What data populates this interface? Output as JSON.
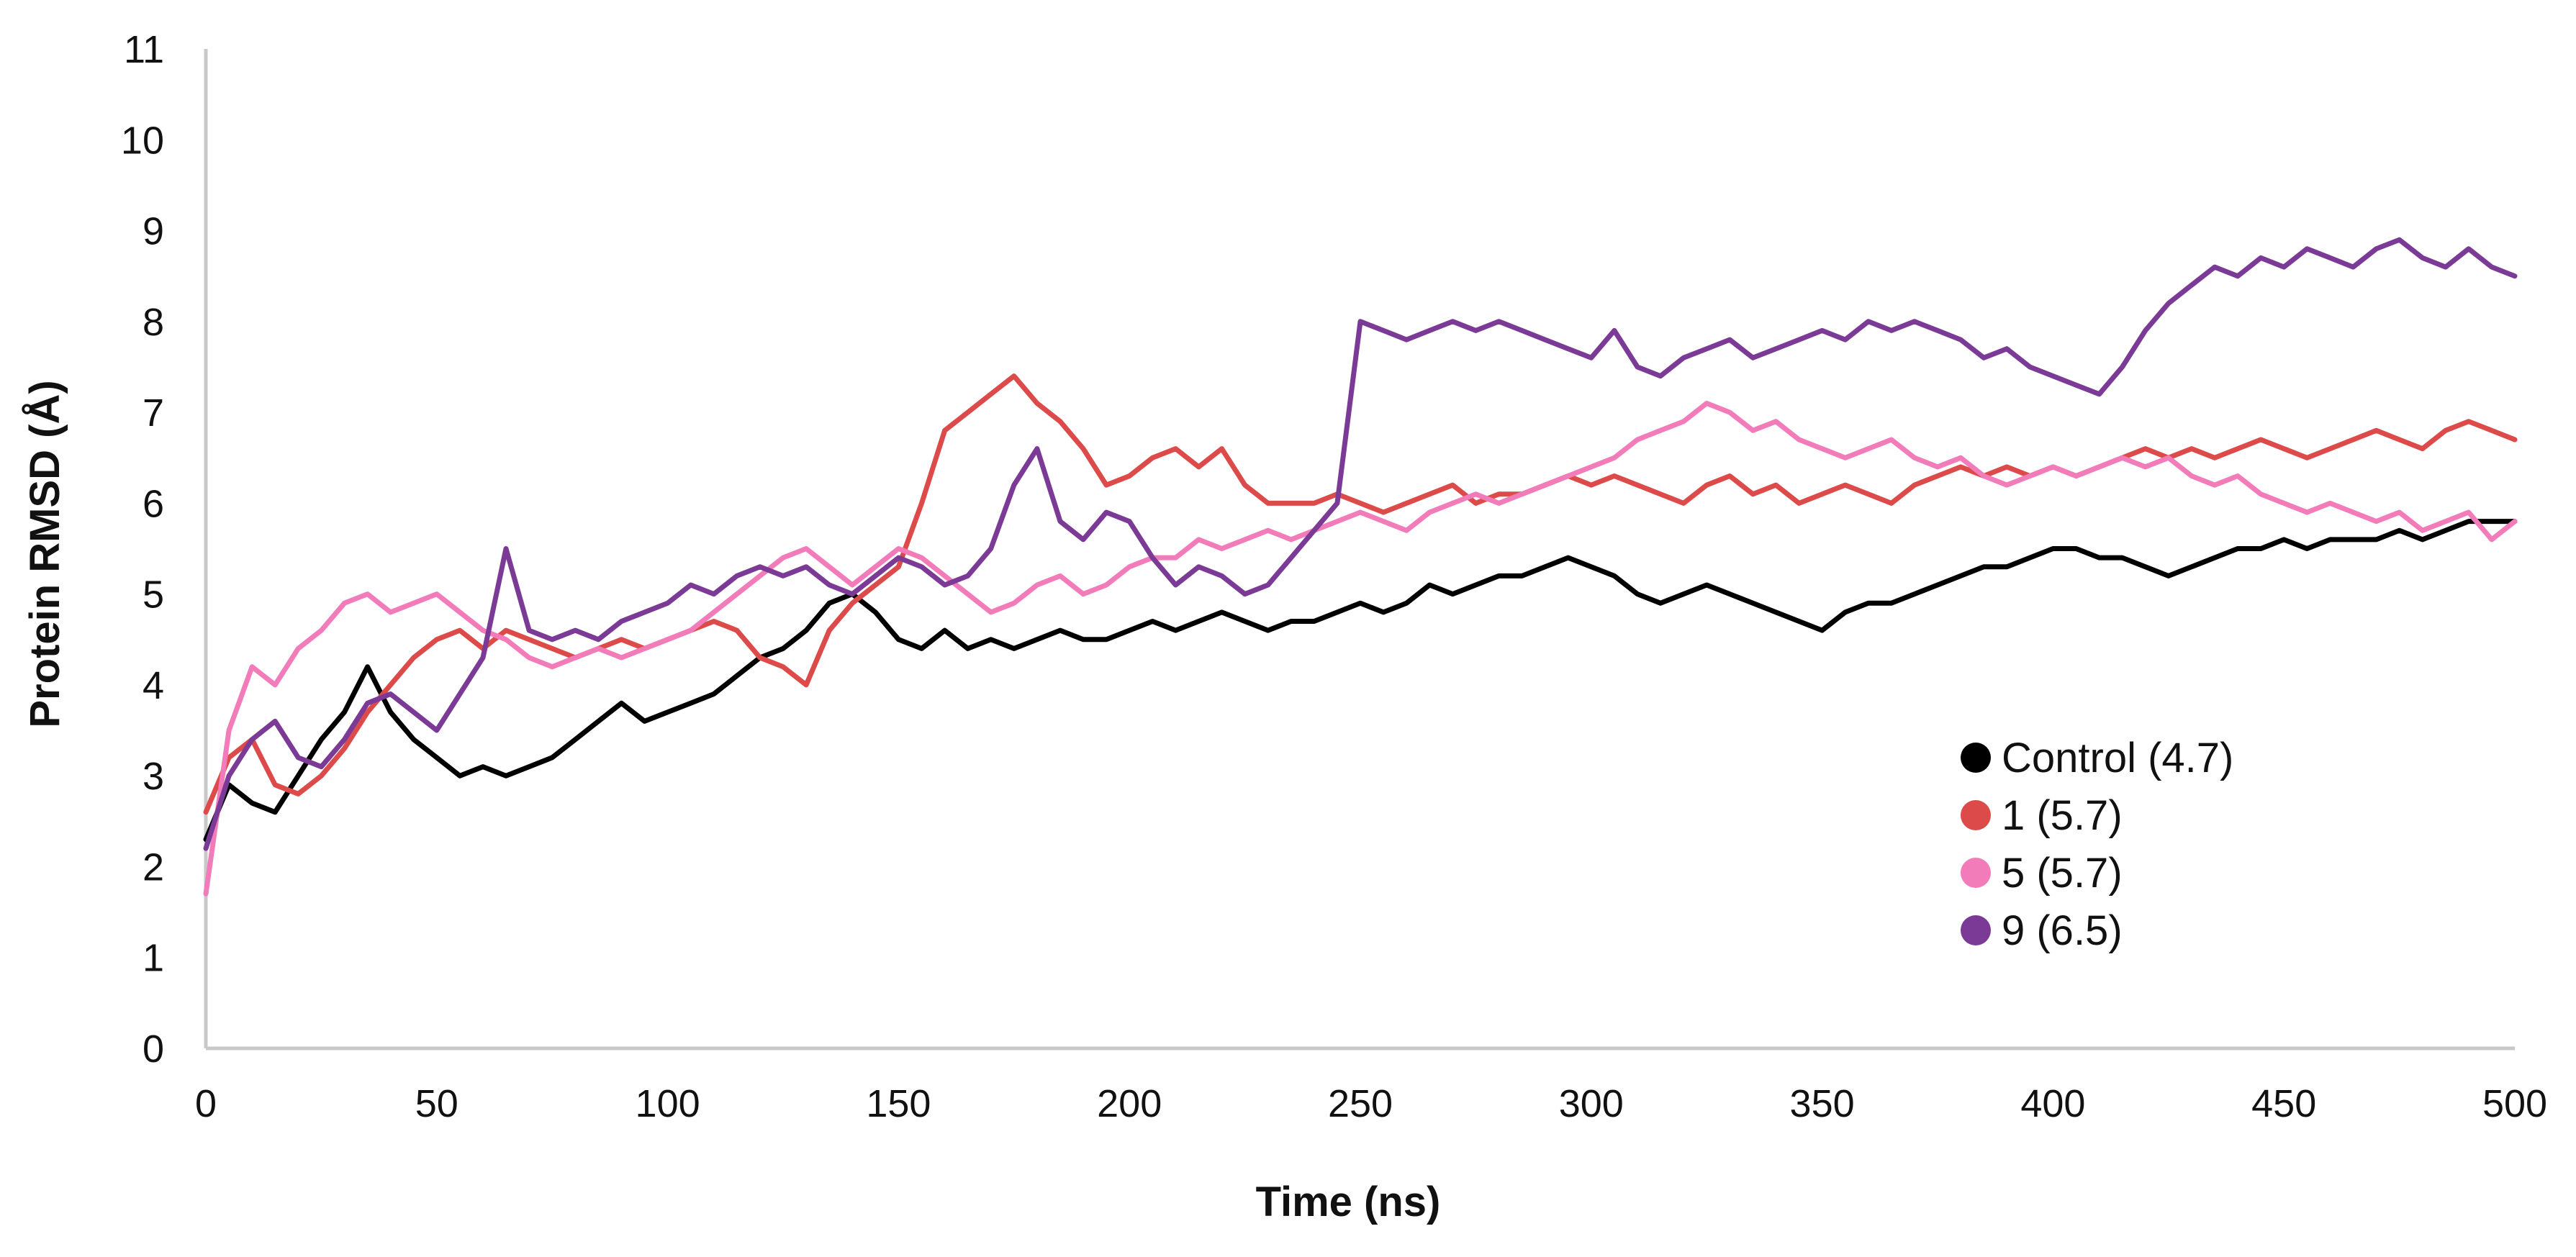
{
  "chart_data": {
    "type": "line",
    "title": "",
    "xlabel": "Time (ns)",
    "ylabel": "Protein RMSD (Å)",
    "xlim": [
      0,
      500
    ],
    "ylim": [
      0,
      11
    ],
    "xticks": [
      0,
      50,
      100,
      150,
      200,
      250,
      300,
      350,
      400,
      450,
      500
    ],
    "yticks": [
      0,
      1,
      2,
      3,
      4,
      5,
      6,
      7,
      8,
      9,
      10,
      11
    ],
    "grid": false,
    "legend_position": "right",
    "series": [
      {
        "name": "Control (4.7)",
        "color": "#000000",
        "x": [
          0,
          5,
          10,
          15,
          20,
          25,
          30,
          35,
          40,
          45,
          50,
          55,
          60,
          65,
          70,
          75,
          80,
          85,
          90,
          95,
          100,
          105,
          110,
          115,
          120,
          125,
          130,
          135,
          140,
          145,
          150,
          155,
          160,
          165,
          170,
          175,
          180,
          185,
          190,
          195,
          200,
          205,
          210,
          215,
          220,
          225,
          230,
          235,
          240,
          245,
          250,
          255,
          260,
          265,
          270,
          275,
          280,
          285,
          290,
          295,
          300,
          305,
          310,
          315,
          320,
          325,
          330,
          335,
          340,
          345,
          350,
          355,
          360,
          365,
          370,
          375,
          380,
          385,
          390,
          395,
          400,
          405,
          410,
          415,
          420,
          425,
          430,
          435,
          440,
          445,
          450,
          455,
          460,
          465,
          470,
          475,
          480,
          485,
          490,
          495,
          500
        ],
        "y": [
          2.3,
          2.9,
          2.7,
          2.6,
          3.0,
          3.4,
          3.7,
          4.2,
          3.7,
          3.4,
          3.2,
          3.0,
          3.1,
          3.0,
          3.1,
          3.2,
          3.4,
          3.6,
          3.8,
          3.6,
          3.7,
          3.8,
          3.9,
          4.1,
          4.3,
          4.4,
          4.6,
          4.9,
          5.0,
          4.8,
          4.5,
          4.4,
          4.6,
          4.4,
          4.5,
          4.4,
          4.5,
          4.6,
          4.5,
          4.5,
          4.6,
          4.7,
          4.6,
          4.7,
          4.8,
          4.7,
          4.6,
          4.7,
          4.7,
          4.8,
          4.9,
          4.8,
          4.9,
          5.1,
          5.0,
          5.1,
          5.2,
          5.2,
          5.3,
          5.4,
          5.3,
          5.2,
          5.0,
          4.9,
          5.0,
          5.1,
          5.0,
          4.9,
          4.8,
          4.7,
          4.6,
          4.8,
          4.9,
          4.9,
          5.0,
          5.1,
          5.2,
          5.3,
          5.3,
          5.4,
          5.5,
          5.5,
          5.4,
          5.4,
          5.3,
          5.2,
          5.3,
          5.4,
          5.5,
          5.5,
          5.6,
          5.5,
          5.6,
          5.6,
          5.6,
          5.7,
          5.6,
          5.7,
          5.8,
          5.8,
          5.8
        ]
      },
      {
        "name": "1 (5.7)",
        "color": "#dc4a4a",
        "x": [
          0,
          5,
          10,
          15,
          20,
          25,
          30,
          35,
          40,
          45,
          50,
          55,
          60,
          65,
          70,
          75,
          80,
          85,
          90,
          95,
          100,
          105,
          110,
          115,
          120,
          125,
          130,
          135,
          140,
          145,
          150,
          155,
          160,
          165,
          170,
          175,
          180,
          185,
          190,
          195,
          200,
          205,
          210,
          215,
          220,
          225,
          230,
          235,
          240,
          245,
          250,
          255,
          260,
          265,
          270,
          275,
          280,
          285,
          290,
          295,
          300,
          305,
          310,
          315,
          320,
          325,
          330,
          335,
          340,
          345,
          350,
          355,
          360,
          365,
          370,
          375,
          380,
          385,
          390,
          395,
          400,
          405,
          410,
          415,
          420,
          425,
          430,
          435,
          440,
          445,
          450,
          455,
          460,
          465,
          470,
          475,
          480,
          485,
          490,
          495,
          500
        ],
        "y": [
          2.6,
          3.2,
          3.4,
          2.9,
          2.8,
          3.0,
          3.3,
          3.7,
          4.0,
          4.3,
          4.5,
          4.6,
          4.4,
          4.6,
          4.5,
          4.4,
          4.3,
          4.4,
          4.5,
          4.4,
          4.5,
          4.6,
          4.7,
          4.6,
          4.3,
          4.2,
          4.0,
          4.6,
          4.9,
          5.1,
          5.3,
          6.0,
          6.8,
          7.0,
          7.2,
          7.4,
          7.1,
          6.9,
          6.6,
          6.2,
          6.3,
          6.5,
          6.6,
          6.4,
          6.6,
          6.2,
          6.0,
          6.0,
          6.0,
          6.1,
          6.0,
          5.9,
          6.0,
          6.1,
          6.2,
          6.0,
          6.1,
          6.1,
          6.2,
          6.3,
          6.2,
          6.3,
          6.2,
          6.1,
          6.0,
          6.2,
          6.3,
          6.1,
          6.2,
          6.0,
          6.1,
          6.2,
          6.1,
          6.0,
          6.2,
          6.3,
          6.4,
          6.3,
          6.4,
          6.3,
          6.4,
          6.3,
          6.4,
          6.5,
          6.6,
          6.5,
          6.6,
          6.5,
          6.6,
          6.7,
          6.6,
          6.5,
          6.6,
          6.7,
          6.8,
          6.7,
          6.6,
          6.8,
          6.9,
          6.8,
          6.7
        ]
      },
      {
        "name": "5 (5.7)",
        "color": "#f27cba",
        "x": [
          0,
          5,
          10,
          15,
          20,
          25,
          30,
          35,
          40,
          45,
          50,
          55,
          60,
          65,
          70,
          75,
          80,
          85,
          90,
          95,
          100,
          105,
          110,
          115,
          120,
          125,
          130,
          135,
          140,
          145,
          150,
          155,
          160,
          165,
          170,
          175,
          180,
          185,
          190,
          195,
          200,
          205,
          210,
          215,
          220,
          225,
          230,
          235,
          240,
          245,
          250,
          255,
          260,
          265,
          270,
          275,
          280,
          285,
          290,
          295,
          300,
          305,
          310,
          315,
          320,
          325,
          330,
          335,
          340,
          345,
          350,
          355,
          360,
          365,
          370,
          375,
          380,
          385,
          390,
          395,
          400,
          405,
          410,
          415,
          420,
          425,
          430,
          435,
          440,
          445,
          450,
          455,
          460,
          465,
          470,
          475,
          480,
          485,
          490,
          495,
          500
        ],
        "y": [
          1.7,
          3.5,
          4.2,
          4.0,
          4.4,
          4.6,
          4.9,
          5.0,
          4.8,
          4.9,
          5.0,
          4.8,
          4.6,
          4.5,
          4.3,
          4.2,
          4.3,
          4.4,
          4.3,
          4.4,
          4.5,
          4.6,
          4.8,
          5.0,
          5.2,
          5.4,
          5.5,
          5.3,
          5.1,
          5.3,
          5.5,
          5.4,
          5.2,
          5.0,
          4.8,
          4.9,
          5.1,
          5.2,
          5.0,
          5.1,
          5.3,
          5.4,
          5.4,
          5.6,
          5.5,
          5.6,
          5.7,
          5.6,
          5.7,
          5.8,
          5.9,
          5.8,
          5.7,
          5.9,
          6.0,
          6.1,
          6.0,
          6.1,
          6.2,
          6.3,
          6.4,
          6.5,
          6.7,
          6.8,
          6.9,
          7.1,
          7.0,
          6.8,
          6.9,
          6.7,
          6.6,
          6.5,
          6.6,
          6.7,
          6.5,
          6.4,
          6.5,
          6.3,
          6.2,
          6.3,
          6.4,
          6.3,
          6.4,
          6.5,
          6.4,
          6.5,
          6.3,
          6.2,
          6.3,
          6.1,
          6.0,
          5.9,
          6.0,
          5.9,
          5.8,
          5.9,
          5.7,
          5.8,
          5.9,
          5.6,
          5.8
        ]
      },
      {
        "name": "9 (6.5)",
        "color": "#7b3a96",
        "x": [
          0,
          5,
          10,
          15,
          20,
          25,
          30,
          35,
          40,
          45,
          50,
          55,
          60,
          65,
          70,
          75,
          80,
          85,
          90,
          95,
          100,
          105,
          110,
          115,
          120,
          125,
          130,
          135,
          140,
          145,
          150,
          155,
          160,
          165,
          170,
          175,
          180,
          185,
          190,
          195,
          200,
          205,
          210,
          215,
          220,
          225,
          230,
          235,
          240,
          245,
          250,
          255,
          260,
          265,
          270,
          275,
          280,
          285,
          290,
          295,
          300,
          305,
          310,
          315,
          320,
          325,
          330,
          335,
          340,
          345,
          350,
          355,
          360,
          365,
          370,
          375,
          380,
          385,
          390,
          395,
          400,
          405,
          410,
          415,
          420,
          425,
          430,
          435,
          440,
          445,
          450,
          455,
          460,
          465,
          470,
          475,
          480,
          485,
          490,
          495,
          500
        ],
        "y": [
          2.2,
          3.0,
          3.4,
          3.6,
          3.2,
          3.1,
          3.4,
          3.8,
          3.9,
          3.7,
          3.5,
          3.9,
          4.3,
          5.5,
          4.6,
          4.5,
          4.6,
          4.5,
          4.7,
          4.8,
          4.9,
          5.1,
          5.0,
          5.2,
          5.3,
          5.2,
          5.3,
          5.1,
          5.0,
          5.2,
          5.4,
          5.3,
          5.1,
          5.2,
          5.5,
          6.2,
          6.6,
          5.8,
          5.6,
          5.9,
          5.8,
          5.4,
          5.1,
          5.3,
          5.2,
          5.0,
          5.1,
          5.4,
          5.7,
          6.0,
          8.0,
          7.9,
          7.8,
          7.9,
          8.0,
          7.9,
          8.0,
          7.9,
          7.8,
          7.7,
          7.6,
          7.9,
          7.5,
          7.4,
          7.6,
          7.7,
          7.8,
          7.6,
          7.7,
          7.8,
          7.9,
          7.8,
          8.0,
          7.9,
          8.0,
          7.9,
          7.8,
          7.6,
          7.7,
          7.5,
          7.4,
          7.3,
          7.2,
          7.5,
          7.9,
          8.2,
          8.4,
          8.6,
          8.5,
          8.7,
          8.6,
          8.8,
          8.7,
          8.6,
          8.8,
          8.9,
          8.7,
          8.6,
          8.8,
          8.6,
          8.5
        ]
      }
    ]
  }
}
